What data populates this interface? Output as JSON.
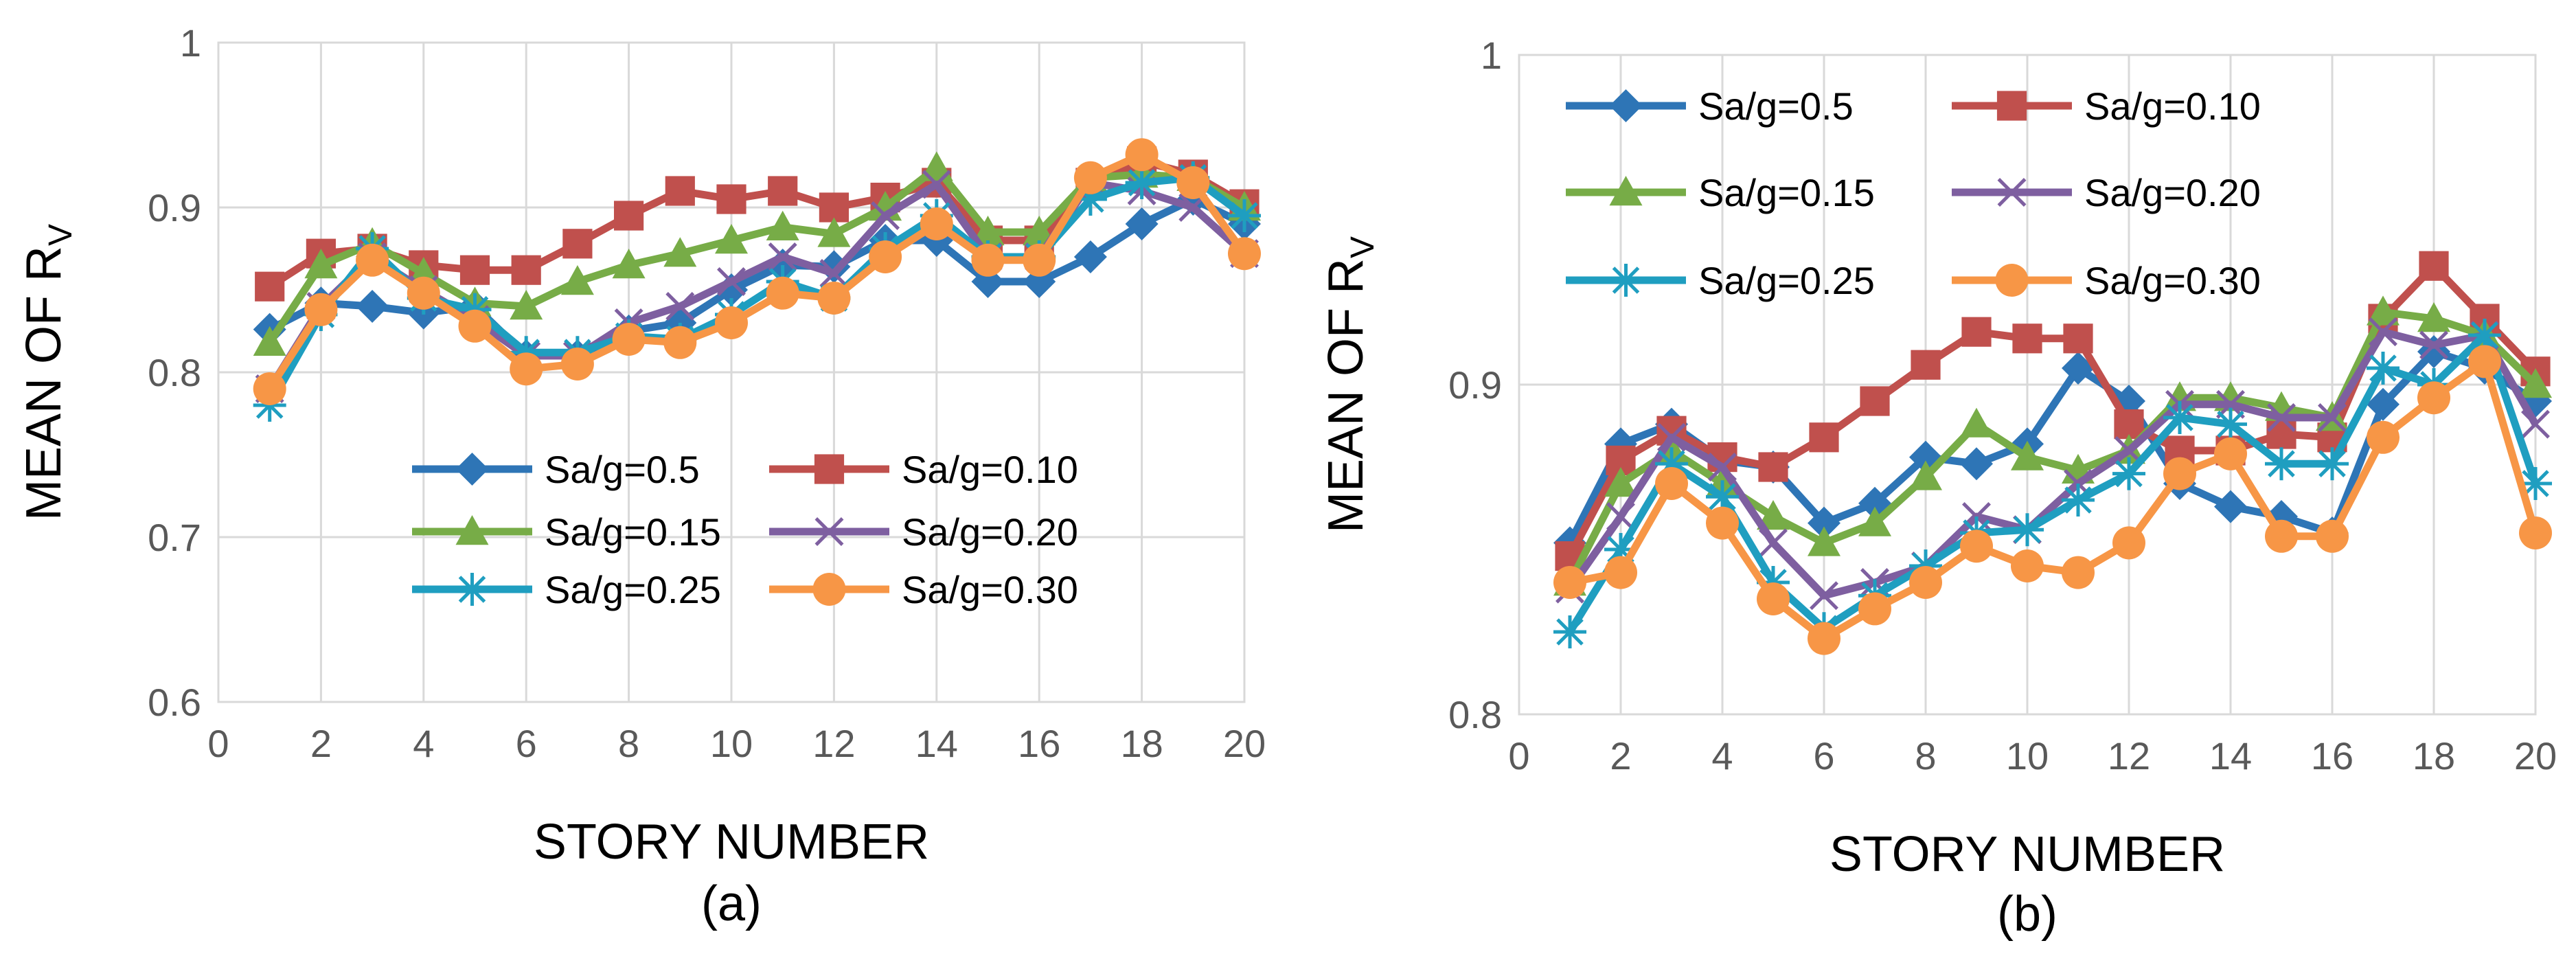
{
  "colors": {
    "Sa/g=0.5": "#2E75B6",
    "Sa/g=0.10": "#C0504D",
    "Sa/g=0.15": "#77AC47",
    "Sa/g=0.20": "#7E5FA0",
    "Sa/g=0.25": "#1F9EC0",
    "Sa/g=0.30": "#F79646",
    "grid": "#D9D9D9",
    "axis_text": "#595959"
  },
  "chart_data": [
    {
      "type": "line",
      "panel_label": "(a)",
      "title": "",
      "xlabel": "STORY NUMBER",
      "ylabel_main": "MEAN OF R",
      "ylabel_sub": "V",
      "xlim": [
        0,
        20
      ],
      "ylim": [
        0.6,
        1
      ],
      "xticks": [
        0,
        2,
        4,
        6,
        8,
        10,
        12,
        14,
        16,
        18,
        20
      ],
      "yticks": [
        0.6,
        0.7,
        0.8,
        0.9,
        1
      ],
      "ytick_labels": [
        "0.6",
        "0.7",
        "0.8",
        "0.9",
        "1"
      ],
      "grid": true,
      "legend_position": "center",
      "x": [
        1,
        2,
        3,
        4,
        5,
        6,
        7,
        8,
        9,
        10,
        11,
        12,
        13,
        14,
        15,
        16,
        17,
        18,
        19,
        20
      ],
      "series": [
        {
          "name": "Sa/g=0.5",
          "marker": "diamond",
          "values": [
            0.826,
            0.842,
            0.84,
            0.836,
            0.84,
            0.81,
            0.81,
            0.825,
            0.83,
            0.85,
            0.865,
            0.864,
            0.88,
            0.88,
            0.855,
            0.855,
            0.87,
            0.89,
            0.905,
            0.89
          ]
        },
        {
          "name": "Sa/g=0.10",
          "marker": "square",
          "values": [
            0.852,
            0.872,
            0.875,
            0.865,
            0.862,
            0.862,
            0.878,
            0.895,
            0.91,
            0.905,
            0.91,
            0.9,
            0.906,
            0.915,
            0.88,
            0.88,
            0.915,
            0.928,
            0.92,
            0.902
          ]
        },
        {
          "name": "Sa/g=0.15",
          "marker": "triangle",
          "values": [
            0.818,
            0.865,
            0.878,
            0.86,
            0.842,
            0.84,
            0.855,
            0.865,
            0.872,
            0.88,
            0.888,
            0.884,
            0.9,
            0.924,
            0.885,
            0.885,
            0.918,
            0.92,
            0.918,
            0.9
          ]
        },
        {
          "name": "Sa/g=0.20",
          "marker": "x",
          "values": [
            0.79,
            0.84,
            0.87,
            0.85,
            0.832,
            0.81,
            0.81,
            0.83,
            0.84,
            0.855,
            0.87,
            0.86,
            0.895,
            0.914,
            0.87,
            0.87,
            0.915,
            0.91,
            0.9,
            0.872
          ]
        },
        {
          "name": "Sa/g=0.25",
          "marker": "star",
          "values": [
            0.78,
            0.835,
            0.875,
            0.845,
            0.838,
            0.812,
            0.812,
            0.822,
            0.82,
            0.835,
            0.855,
            0.845,
            0.875,
            0.895,
            0.87,
            0.87,
            0.905,
            0.915,
            0.918,
            0.895
          ]
        },
        {
          "name": "Sa/g=0.30",
          "marker": "circle",
          "values": [
            0.79,
            0.838,
            0.868,
            0.848,
            0.828,
            0.802,
            0.805,
            0.82,
            0.818,
            0.83,
            0.848,
            0.845,
            0.87,
            0.89,
            0.868,
            0.868,
            0.918,
            0.932,
            0.915,
            0.872
          ]
        }
      ]
    },
    {
      "type": "line",
      "panel_label": "(b)",
      "title": "",
      "xlabel": "STORY NUMBER",
      "ylabel_main": "MEAN OF R",
      "ylabel_sub": "V",
      "xlim": [
        0,
        20
      ],
      "ylim": [
        0.8,
        1
      ],
      "xticks": [
        0,
        2,
        4,
        6,
        8,
        10,
        12,
        14,
        16,
        18,
        20
      ],
      "yticks": [
        0.8,
        0.9,
        1
      ],
      "ytick_labels": [
        "0.8",
        "0.9",
        "1"
      ],
      "grid": true,
      "legend_position": "top",
      "x": [
        1,
        2,
        3,
        4,
        5,
        6,
        7,
        8,
        9,
        10,
        11,
        12,
        13,
        14,
        15,
        16,
        17,
        18,
        19,
        20
      ],
      "series": [
        {
          "name": "Sa/g=0.5",
          "marker": "diamond",
          "values": [
            0.852,
            0.882,
            0.888,
            0.877,
            0.875,
            0.858,
            0.864,
            0.878,
            0.876,
            0.882,
            0.905,
            0.895,
            0.87,
            0.863,
            0.86,
            0.855,
            0.894,
            0.91,
            0.905,
            0.895
          ]
        },
        {
          "name": "Sa/g=0.10",
          "marker": "square",
          "values": [
            0.848,
            0.877,
            0.886,
            0.878,
            0.875,
            0.884,
            0.895,
            0.906,
            0.916,
            0.914,
            0.914,
            0.888,
            0.88,
            0.88,
            0.885,
            0.884,
            0.92,
            0.936,
            0.92,
            0.904
          ]
        },
        {
          "name": "Sa/g=0.15",
          "marker": "triangle",
          "values": [
            0.84,
            0.87,
            0.88,
            0.87,
            0.86,
            0.852,
            0.858,
            0.872,
            0.888,
            0.878,
            0.874,
            0.88,
            0.896,
            0.896,
            0.893,
            0.89,
            0.922,
            0.92,
            0.915,
            0.9
          ]
        },
        {
          "name": "Sa/g=0.20",
          "marker": "x",
          "values": [
            0.838,
            0.86,
            0.884,
            0.875,
            0.852,
            0.836,
            0.84,
            0.845,
            0.86,
            0.856,
            0.87,
            0.88,
            0.894,
            0.894,
            0.89,
            0.89,
            0.916,
            0.912,
            0.915,
            0.888
          ]
        },
        {
          "name": "Sa/g=0.25",
          "marker": "star",
          "values": [
            0.825,
            0.85,
            0.876,
            0.866,
            0.84,
            0.826,
            0.836,
            0.845,
            0.855,
            0.856,
            0.865,
            0.873,
            0.89,
            0.888,
            0.876,
            0.876,
            0.905,
            0.9,
            0.915,
            0.87
          ]
        },
        {
          "name": "Sa/g=0.30",
          "marker": "circle",
          "values": [
            0.84,
            0.843,
            0.87,
            0.858,
            0.835,
            0.823,
            0.832,
            0.84,
            0.851,
            0.845,
            0.843,
            0.852,
            0.873,
            0.879,
            0.854,
            0.854,
            0.884,
            0.896,
            0.907,
            0.855
          ]
        }
      ]
    }
  ]
}
